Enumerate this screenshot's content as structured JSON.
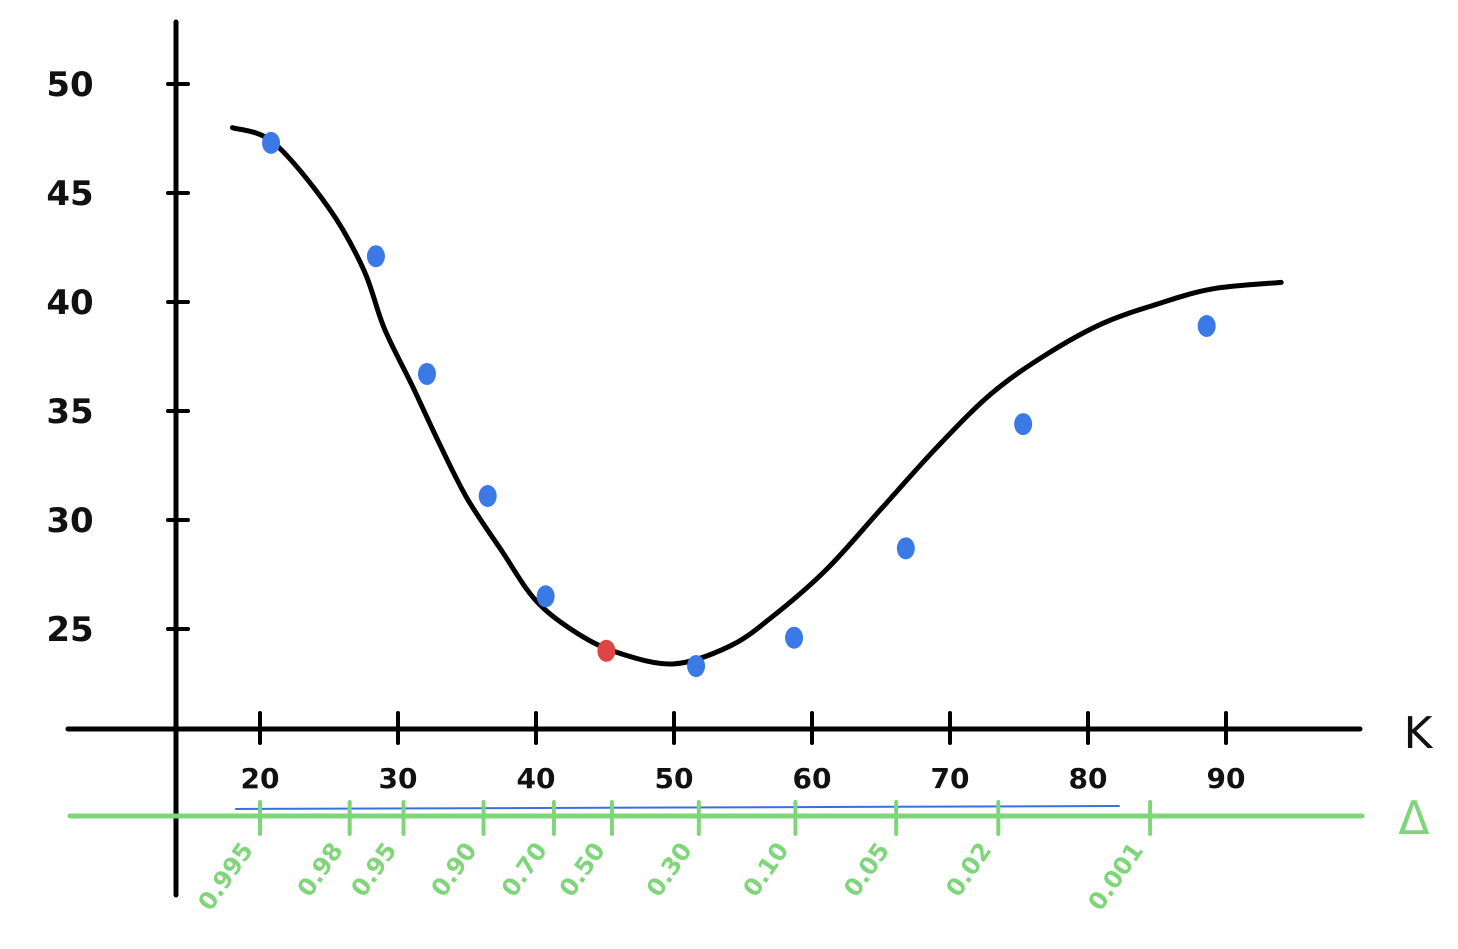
{
  "chart_data": {
    "type": "line",
    "title": "",
    "xlabel": "K",
    "ylabel": "",
    "ylim": [
      20,
      50
    ],
    "xlim": [
      13,
      97
    ],
    "grid": false,
    "y_ticks": [
      "25",
      "30",
      "35",
      "40",
      "45",
      "50"
    ],
    "y_tick_values": [
      25,
      30,
      35,
      40,
      45,
      50
    ],
    "x_ticks": [
      "20",
      "30",
      "40",
      "50",
      "60",
      "70",
      "80",
      "90"
    ],
    "x_tick_values": [
      20,
      30,
      40,
      50,
      60,
      70,
      80,
      90
    ],
    "curve": {
      "x": [
        18,
        21,
        25,
        27.5,
        29,
        31,
        33,
        35,
        37.5,
        40,
        43,
        46,
        50,
        54,
        57,
        61,
        65,
        69,
        73,
        77,
        81,
        85,
        89,
        94
      ],
      "y": [
        48,
        47.3,
        44.3,
        41.5,
        38.8,
        36.2,
        33.5,
        31,
        28.6,
        26.3,
        24.8,
        23.9,
        23.4,
        24.2,
        25.5,
        27.7,
        30.5,
        33.3,
        35.8,
        37.6,
        39,
        39.9,
        40.6,
        40.9
      ]
    },
    "points": {
      "x": [
        20.8,
        28.4,
        32.1,
        36.5,
        40.7,
        45.1,
        51.6,
        58.7,
        66.8,
        75.3,
        88.6
      ],
      "y": [
        47.3,
        42.1,
        36.7,
        31.1,
        26.5,
        24,
        23.3,
        24.6,
        28.7,
        34.4,
        38.9
      ],
      "colors": [
        "#3b7ae6",
        "#3b7ae6",
        "#3b7ae6",
        "#3b7ae6",
        "#3b7ae6",
        "#e04545",
        "#3b7ae6",
        "#3b7ae6",
        "#3b7ae6",
        "#3b7ae6",
        "#3b7ae6"
      ]
    },
    "delta_axis": {
      "label": "Δ",
      "ticks": [
        "0.995",
        "0.98",
        "0.95",
        "0.90",
        "0.70",
        "0.50",
        "0.30",
        "0.10",
        "0.05",
        "0.02",
        "0.001"
      ],
      "tick_k_positions": [
        20,
        26.5,
        30.4,
        36.2,
        41.3,
        45.5,
        51.8,
        58.8,
        66.1,
        73.5,
        84.5
      ]
    },
    "colors": {
      "curve": "#000000",
      "axes": "#000000",
      "delta_axis": "#7fd67a",
      "blue_underline": "#3b6fe0"
    }
  }
}
